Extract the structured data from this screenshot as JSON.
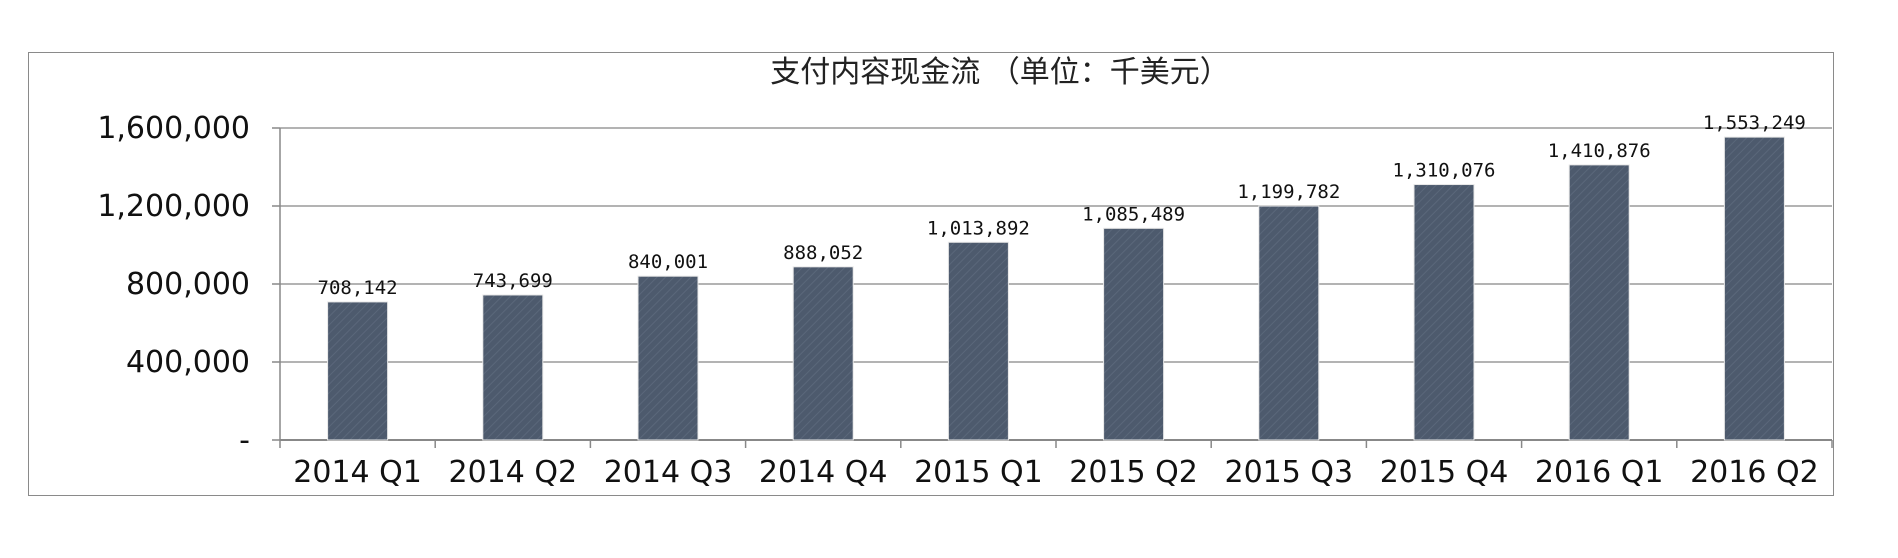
{
  "chart_data": {
    "type": "bar",
    "title": "支付内容现金流 （单位：千美元）",
    "xlabel": "",
    "ylabel": "",
    "categories": [
      "2014 Q1",
      "2014 Q2",
      "2014 Q3",
      "2014 Q4",
      "2015 Q1",
      "2015 Q2",
      "2015 Q3",
      "2015 Q4",
      "2016 Q1",
      "2016 Q2"
    ],
    "values": [
      708142,
      743699,
      840001,
      888052,
      1013892,
      1085489,
      1199782,
      1310076,
      1410876,
      1553249
    ],
    "data_labels": [
      "708,142",
      "743,699",
      "840,001",
      "888,052",
      "1,013,892",
      "1,085,489",
      "1,199,782",
      "1,310,076",
      "1,410,876",
      "1,553,249"
    ],
    "ylim": [
      0,
      1600000
    ],
    "yticks": [
      0,
      400000,
      800000,
      1200000,
      1600000
    ],
    "ytick_labels": [
      "-",
      "400,000",
      "800,000",
      "1,200,000",
      "1,600,000"
    ],
    "grid": true,
    "bar_color": "#4d5a6d",
    "grid_color": "#9a9a9a"
  }
}
